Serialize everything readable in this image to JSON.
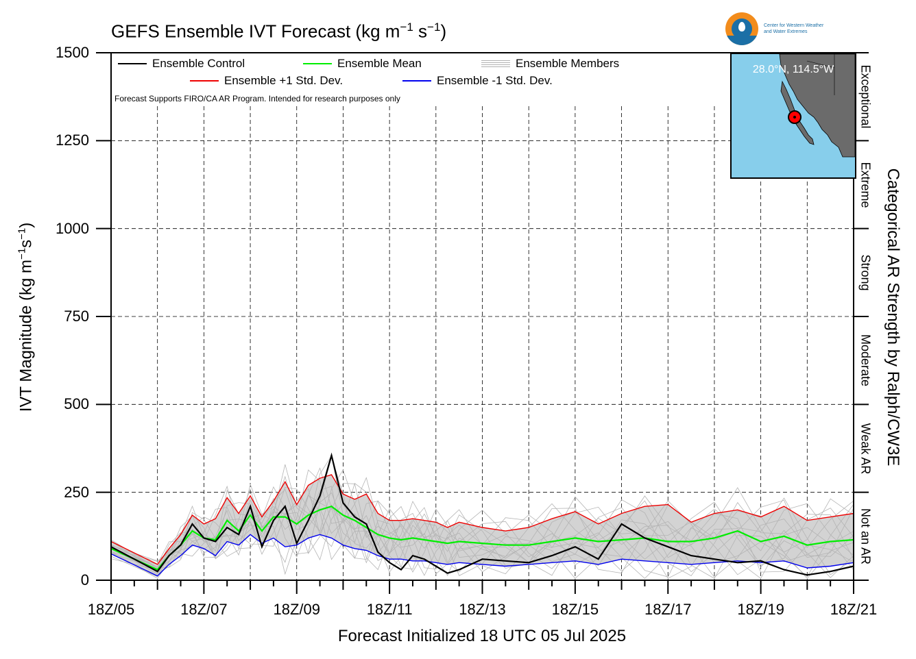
{
  "title": {
    "text": "GEFS Ensemble IVT Forecast (kg m",
    "sup1": "−1",
    "mid": " s",
    "sup2": "−1",
    "end": ")"
  },
  "ylabel": {
    "text": "IVT Magnitude (kg m",
    "sup1": "−1",
    "mid": "s",
    "sup2": "−1",
    "end": ")"
  },
  "xlabel": "Forecast Initialized 18 UTC 05 Jul 2025",
  "right_label": "Categorical AR Strength by Ralph/CW3E",
  "note": "Forecast Supports FIRO/CA AR Program. Intended for research purposes only",
  "logo_text": "Center for Western Weather\nand Water Extremes",
  "map": {
    "coord": "28.0°N, 114.5°W",
    "land_color": "#6b6b6b",
    "water_color": "#87ceeb"
  },
  "legend": {
    "control": "Ensemble Control",
    "mean": "Ensemble Mean",
    "members": "Ensemble Members",
    "plus": "Ensemble +1 Std. Dev.",
    "minus": "Ensemble -1 Std. Dev."
  },
  "categories": [
    {
      "label": "Not an AR",
      "from": 0,
      "to": 250
    },
    {
      "label": "Weak AR",
      "from": 250,
      "to": 500
    },
    {
      "label": "Moderate",
      "from": 500,
      "to": 750
    },
    {
      "label": "Strong",
      "from": 750,
      "to": 1000
    },
    {
      "label": "Extreme",
      "from": 1000,
      "to": 1250
    },
    {
      "label": "Exceptional",
      "from": 1250,
      "to": 1500
    }
  ],
  "colors": {
    "control": "#000000",
    "mean": "#00ee00",
    "plus": "#ee0000",
    "minus": "#0000ee",
    "members": "#b4b4b4",
    "spread": "#d3d3d3"
  },
  "chart_data": {
    "type": "line",
    "title": "GEFS Ensemble IVT Forecast (kg m-1 s-1)",
    "xlabel": "Forecast Initialized 18 UTC 05 Jul 2025",
    "ylabel": "IVT Magnitude (kg m-1s-1)",
    "xlim": [
      0,
      384
    ],
    "ylim": [
      0,
      1500
    ],
    "x_units": "forecast hours",
    "x_ticks": [
      0,
      48,
      96,
      144,
      192,
      240,
      288,
      336,
      384
    ],
    "x_tick_labels": [
      "18Z/05",
      "18Z/07",
      "18Z/09",
      "18Z/11",
      "18Z/13",
      "18Z/15",
      "18Z/17",
      "18Z/19",
      "18Z/21"
    ],
    "y_ticks": [
      0,
      250,
      500,
      750,
      1000,
      1250,
      1500
    ],
    "grid": true,
    "x_hours": [
      0,
      24,
      30,
      36,
      42,
      48,
      54,
      60,
      66,
      72,
      78,
      84,
      90,
      96,
      102,
      108,
      114,
      120,
      126,
      132,
      138,
      144,
      150,
      156,
      162,
      168,
      174,
      180,
      192,
      204,
      216,
      228,
      240,
      252,
      264,
      276,
      288,
      300,
      312,
      324,
      336,
      348,
      360,
      372,
      384
    ],
    "series": [
      {
        "name": "Ensemble Control",
        "values": [
          95,
          25,
          70,
          100,
          160,
          120,
          110,
          150,
          130,
          210,
          95,
          170,
          210,
          105,
          170,
          240,
          355,
          220,
          180,
          160,
          80,
          50,
          30,
          70,
          60,
          40,
          20,
          30,
          60,
          55,
          50,
          70,
          95,
          60,
          160,
          120,
          95,
          70,
          60,
          50,
          55,
          30,
          15,
          25,
          40
        ]
      },
      {
        "name": "Ensemble Mean",
        "values": [
          90,
          30,
          70,
          100,
          140,
          120,
          115,
          170,
          140,
          185,
          140,
          180,
          180,
          160,
          185,
          200,
          210,
          185,
          170,
          150,
          130,
          120,
          115,
          120,
          115,
          110,
          105,
          110,
          105,
          100,
          100,
          110,
          120,
          110,
          115,
          120,
          110,
          110,
          120,
          140,
          110,
          125,
          100,
          110,
          115
        ]
      },
      {
        "name": "Ensemble +1 Std. Dev.",
        "values": [
          110,
          45,
          90,
          130,
          185,
          160,
          175,
          235,
          190,
          240,
          180,
          225,
          280,
          215,
          270,
          290,
          300,
          245,
          230,
          245,
          190,
          170,
          170,
          175,
          170,
          165,
          150,
          165,
          150,
          140,
          150,
          175,
          195,
          160,
          190,
          210,
          215,
          165,
          190,
          200,
          180,
          210,
          170,
          180,
          190
        ]
      },
      {
        "name": "Ensemble -1 Std. Dev.",
        "values": [
          75,
          12,
          45,
          70,
          100,
          90,
          70,
          110,
          100,
          130,
          105,
          120,
          95,
          100,
          120,
          130,
          120,
          100,
          90,
          85,
          70,
          60,
          60,
          55,
          55,
          50,
          45,
          50,
          45,
          40,
          45,
          50,
          55,
          45,
          60,
          55,
          50,
          45,
          50,
          55,
          50,
          55,
          35,
          40,
          50
        ]
      }
    ]
  }
}
